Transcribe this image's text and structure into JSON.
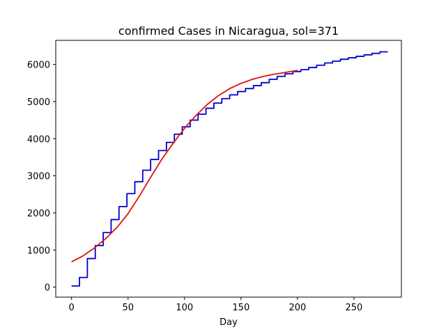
{
  "chart_data": {
    "type": "line",
    "title": "confirmed Cases in Nicaragua, sol=371",
    "xlabel": "Day",
    "ylabel": "",
    "xlim": [
      -14,
      292
    ],
    "ylim": [
      -270,
      6650
    ],
    "xticks": [
      0,
      50,
      100,
      150,
      200,
      250
    ],
    "yticks": [
      0,
      1000,
      2000,
      3000,
      4000,
      5000,
      6000
    ],
    "grid": false,
    "series": [
      {
        "color": "#0000cc",
        "style": "steps-post",
        "x": [
          0,
          7,
          14,
          21,
          28,
          35,
          42,
          49,
          56,
          63,
          70,
          77,
          84,
          91,
          98,
          105,
          112,
          119,
          126,
          133,
          140,
          147,
          154,
          161,
          168,
          175,
          182,
          189,
          196,
          203,
          210,
          217,
          224,
          231,
          238,
          245,
          252,
          259,
          266,
          273,
          280
        ],
        "y": [
          30,
          260,
          770,
          1120,
          1470,
          1820,
          2170,
          2520,
          2840,
          3150,
          3440,
          3680,
          3900,
          4120,
          4320,
          4500,
          4660,
          4820,
          4960,
          5080,
          5180,
          5270,
          5350,
          5430,
          5510,
          5600,
          5680,
          5750,
          5810,
          5860,
          5920,
          5980,
          6040,
          6090,
          6140,
          6180,
          6220,
          6260,
          6300,
          6340,
          6340
        ]
      },
      {
        "color": "#dd1111",
        "style": "line",
        "x": [
          0,
          10,
          20,
          30,
          40,
          50,
          60,
          70,
          80,
          90,
          100,
          110,
          120,
          130,
          140,
          150,
          160,
          170,
          180,
          190,
          200
        ],
        "y": [
          680,
          840,
          1050,
          1300,
          1600,
          1980,
          2450,
          2960,
          3450,
          3880,
          4280,
          4620,
          4920,
          5160,
          5350,
          5490,
          5600,
          5680,
          5740,
          5790,
          5840
        ]
      }
    ]
  }
}
